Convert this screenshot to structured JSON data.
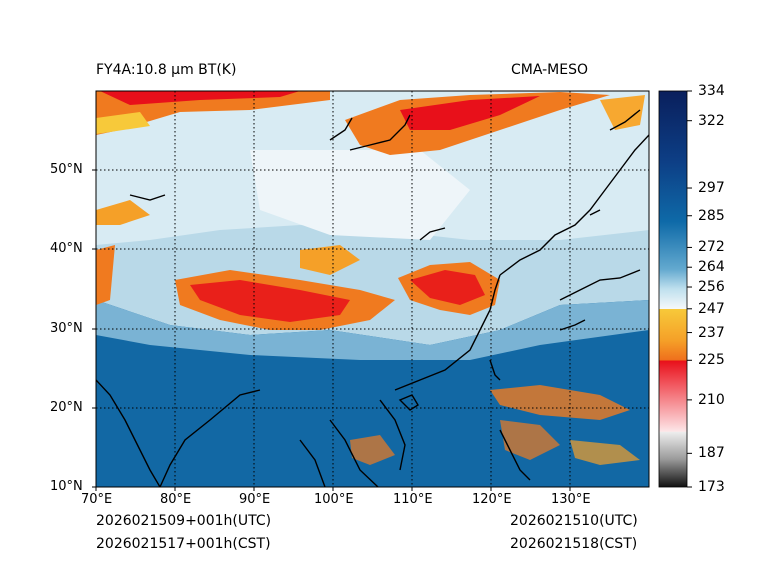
{
  "header": {
    "title_left": "FY4A:10.8 µm BT(K)",
    "title_right": "CMA-MESO"
  },
  "footer": {
    "left_line1": "2026021509+001h(UTC)",
    "left_line2": "2026021517+001h(CST)",
    "right_line1": "2026021510(UTC)",
    "right_line2": "2026021518(CST)"
  },
  "map": {
    "lon_range": [
      70,
      140
    ],
    "lat_range": [
      10,
      60
    ],
    "lon_ticks": [
      {
        "value": 70,
        "label": "70°E"
      },
      {
        "value": 80,
        "label": "80°E"
      },
      {
        "value": 90,
        "label": "90°E"
      },
      {
        "value": 100,
        "label": "100°E"
      },
      {
        "value": 110,
        "label": "110°E"
      },
      {
        "value": 120,
        "label": "120°E"
      },
      {
        "value": 130,
        "label": "130°E"
      }
    ],
    "lat_ticks": [
      {
        "value": 10,
        "label": "10°N"
      },
      {
        "value": 20,
        "label": "20°N"
      },
      {
        "value": 30,
        "label": "30°N"
      },
      {
        "value": 40,
        "label": "40°N"
      },
      {
        "value": 50,
        "label": "50°N"
      }
    ]
  },
  "colorbar": {
    "range": [
      173,
      334
    ],
    "labels": [
      {
        "value": 334,
        "label": "334"
      },
      {
        "value": 322,
        "label": "322"
      },
      {
        "value": 297,
        "label": "297"
      },
      {
        "value": 285,
        "label": "285"
      },
      {
        "value": 272,
        "label": "272"
      },
      {
        "value": 264,
        "label": "264"
      },
      {
        "value": 256,
        "label": "256"
      },
      {
        "value": 247,
        "label": "247"
      },
      {
        "value": 237,
        "label": "237"
      },
      {
        "value": 225,
        "label": "225"
      },
      {
        "value": 210,
        "label": "210"
      },
      {
        "value": 187,
        "label": "187"
      },
      {
        "value": 173,
        "label": "173"
      }
    ],
    "colors": {
      "deep_navy": "#0a1f5c",
      "ocean_blue": "#0e6aa8",
      "light_blue": "#bfe0ee",
      "white": "#f5f8fa",
      "yellow": "#f7c93a",
      "orange": "#f07a1f",
      "red": "#e8101a",
      "pink": "#f6c2c6",
      "grey": "#9a9a9a",
      "black": "#111111"
    }
  }
}
